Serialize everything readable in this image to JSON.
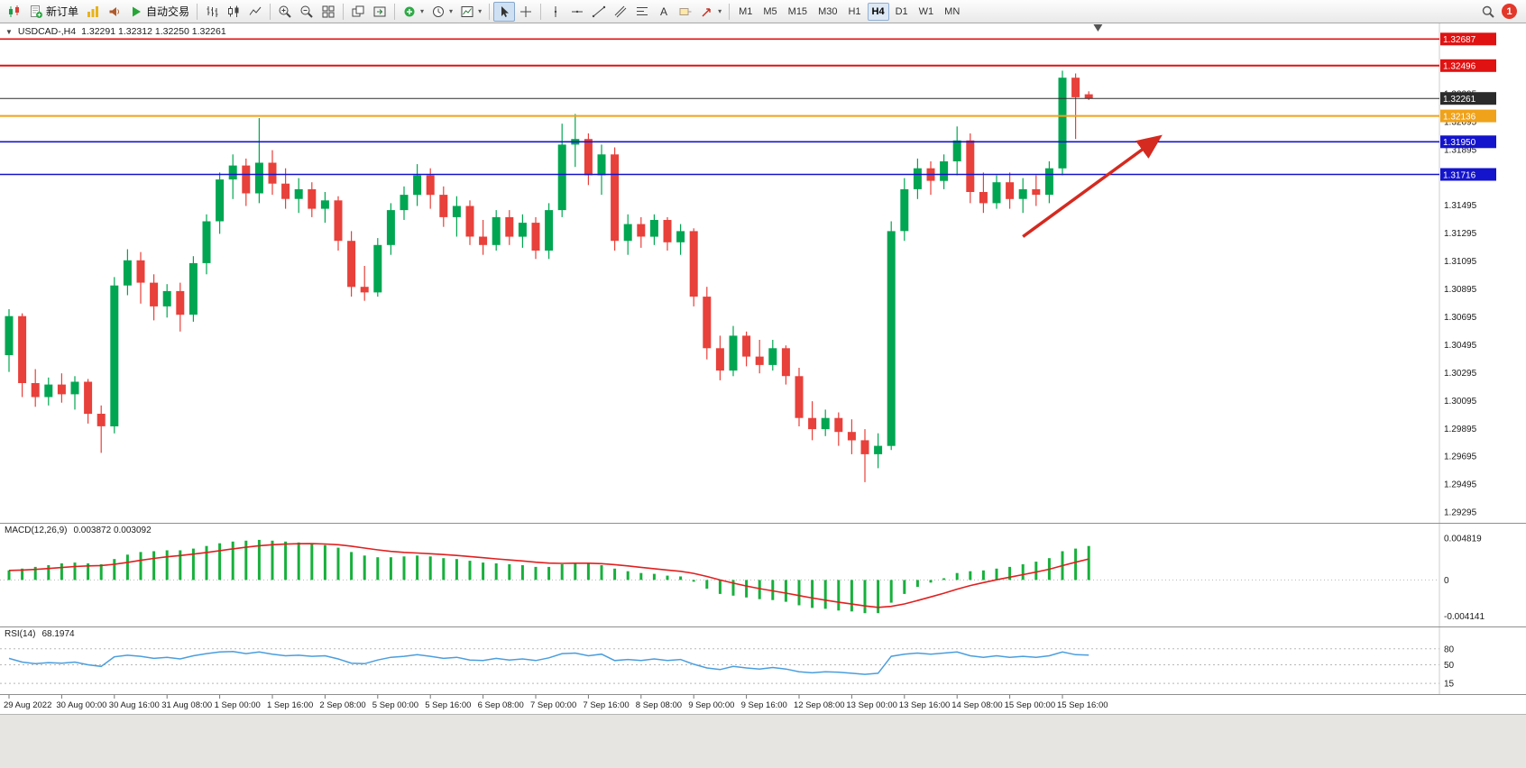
{
  "toolbar": {
    "groups": [
      {
        "items": [
          {
            "name": "chart-window",
            "icon": "candle-mini"
          },
          {
            "name": "new-order",
            "icon": "order-sheet",
            "label": "新订单"
          },
          {
            "name": "chart-gallery",
            "icon": "gallery"
          },
          {
            "name": "market-watch",
            "icon": "speaker"
          },
          {
            "name": "autotrade",
            "icon": "play",
            "label": "自动交易"
          }
        ]
      },
      {
        "items": [
          {
            "name": "bar-chart-mode",
            "icon": "bars"
          },
          {
            "name": "candlestick-mode",
            "icon": "candles"
          },
          {
            "name": "line-chart-mode",
            "icon": "polyline"
          }
        ]
      },
      {
        "items": [
          {
            "name": "zoom-in",
            "icon": "zoom-in"
          },
          {
            "name": "zoom-out",
            "icon": "zoom-out"
          },
          {
            "name": "tile-windows",
            "icon": "grid"
          }
        ]
      },
      {
        "items": [
          {
            "name": "arrange-charts",
            "icon": "cascade"
          },
          {
            "name": "chart-shift",
            "icon": "shift"
          }
        ]
      },
      {
        "items": [
          {
            "name": "indicators",
            "icon": "ind-plus",
            "caret": true
          },
          {
            "name": "periods",
            "icon": "clock",
            "caret": true
          },
          {
            "name": "templates",
            "icon": "template",
            "caret": true
          }
        ]
      },
      {
        "items": [
          {
            "name": "cursor",
            "icon": "cursor",
            "active": true
          },
          {
            "name": "crosshair",
            "icon": "crosshair"
          }
        ]
      },
      {
        "items": [
          {
            "name": "vertical-line",
            "icon": "vline"
          },
          {
            "name": "horizontal-line",
            "icon": "hline"
          },
          {
            "name": "trendline",
            "icon": "tline"
          },
          {
            "name": "equidistant-channel",
            "icon": "channel"
          },
          {
            "name": "fibonacci",
            "icon": "fibo"
          },
          {
            "name": "text",
            "icon": "textA"
          },
          {
            "name": "text-label",
            "icon": "label"
          },
          {
            "name": "arrows",
            "icon": "arrowtool",
            "caret": true
          }
        ]
      }
    ],
    "timeframes": [
      "M1",
      "M5",
      "M15",
      "M30",
      "H1",
      "H4",
      "D1",
      "W1",
      "MN"
    ],
    "active_timeframe": "H4",
    "notification_count": "1"
  },
  "chart_data": {
    "type": "candlestick",
    "title": "USDCAD-,H4",
    "ohlc_text": "1.32291 1.32312 1.32250 1.32261",
    "colors": {
      "up": "#00a651",
      "down": "#e8403a",
      "macd_hist": "#17b03c",
      "macd_signal": "#e02020",
      "rsi_line": "#4a9ede"
    },
    "price_axis": {
      "ticks": [
        "1.32295",
        "1.32095",
        "1.31895",
        "1.31695",
        "1.31495",
        "1.31295",
        "1.31095",
        "1.30895",
        "1.30695",
        "1.30495",
        "1.30295",
        "1.30095",
        "1.29895",
        "1.29695",
        "1.29495",
        "1.29295"
      ]
    },
    "hlines": [
      {
        "name": "resistance-line-top",
        "price": 1.32687,
        "color": "#e01212",
        "width": 1.6,
        "badge": "1.32687"
      },
      {
        "name": "resistance-line",
        "price": 1.32496,
        "color": "#e01212",
        "width": 2,
        "badge": "1.32496"
      },
      {
        "name": "current-price-line",
        "price": 1.32261,
        "color": "#2b2b2b",
        "width": 1,
        "badge": "1.32261"
      },
      {
        "name": "orange-level-line",
        "price": 1.32136,
        "color": "#efa21a",
        "width": 2,
        "badge": "1.32136"
      },
      {
        "name": "support-line-upper",
        "price": 1.3195,
        "color": "#1414cc",
        "width": 1.6,
        "badge": "1.31950"
      },
      {
        "name": "support-line-lower",
        "price": 1.31716,
        "color": "#1414cc",
        "width": 1.6,
        "badge": "1.31716"
      }
    ],
    "candles": [
      [
        1.3042,
        1.3075,
        1.303,
        1.307
      ],
      [
        1.307,
        1.3072,
        1.3012,
        1.3022
      ],
      [
        1.3022,
        1.3032,
        1.3005,
        1.3012
      ],
      [
        1.3012,
        1.3026,
        1.3006,
        1.3021
      ],
      [
        1.3021,
        1.3029,
        1.3008,
        1.3014
      ],
      [
        1.3014,
        1.3027,
        1.3003,
        1.3023
      ],
      [
        1.3023,
        1.3025,
        1.2993,
        1.3
      ],
      [
        1.3,
        1.3006,
        1.2972,
        1.2991
      ],
      [
        1.2991,
        1.3098,
        1.2986,
        1.3092
      ],
      [
        1.3092,
        1.3118,
        1.3085,
        1.311
      ],
      [
        1.311,
        1.3116,
        1.3079,
        1.3094
      ],
      [
        1.3094,
        1.31,
        1.3067,
        1.3077
      ],
      [
        1.3077,
        1.3093,
        1.3069,
        1.3088
      ],
      [
        1.3088,
        1.3094,
        1.3059,
        1.3071
      ],
      [
        1.3071,
        1.3113,
        1.3066,
        1.3108
      ],
      [
        1.3108,
        1.3143,
        1.31,
        1.3138
      ],
      [
        1.3138,
        1.3173,
        1.3129,
        1.3168
      ],
      [
        1.3168,
        1.3186,
        1.3154,
        1.3178
      ],
      [
        1.3178,
        1.3183,
        1.3149,
        1.3158
      ],
      [
        1.3158,
        1.3212,
        1.3151,
        1.318
      ],
      [
        1.318,
        1.3189,
        1.3157,
        1.3165
      ],
      [
        1.3165,
        1.3176,
        1.3147,
        1.3154
      ],
      [
        1.3154,
        1.3169,
        1.3144,
        1.3161
      ],
      [
        1.3161,
        1.3166,
        1.3141,
        1.3147
      ],
      [
        1.3147,
        1.3159,
        1.3137,
        1.3153
      ],
      [
        1.3153,
        1.3156,
        1.3117,
        1.3124
      ],
      [
        1.3124,
        1.3131,
        1.3084,
        1.3091
      ],
      [
        1.3091,
        1.3106,
        1.3081,
        1.3087
      ],
      [
        1.3087,
        1.3126,
        1.3084,
        1.3121
      ],
      [
        1.3121,
        1.3151,
        1.3114,
        1.3146
      ],
      [
        1.3146,
        1.3163,
        1.3139,
        1.3157
      ],
      [
        1.3157,
        1.3179,
        1.3149,
        1.3171
      ],
      [
        1.3171,
        1.3176,
        1.3147,
        1.3157
      ],
      [
        1.3157,
        1.3163,
        1.3134,
        1.3141
      ],
      [
        1.3141,
        1.3156,
        1.3127,
        1.3149
      ],
      [
        1.3149,
        1.3153,
        1.3121,
        1.3127
      ],
      [
        1.3127,
        1.3139,
        1.3114,
        1.3121
      ],
      [
        1.3121,
        1.3146,
        1.3117,
        1.3141
      ],
      [
        1.3141,
        1.3146,
        1.3121,
        1.3127
      ],
      [
        1.3127,
        1.3143,
        1.3119,
        1.3137
      ],
      [
        1.3137,
        1.3141,
        1.3111,
        1.3117
      ],
      [
        1.3117,
        1.3151,
        1.3111,
        1.3146
      ],
      [
        1.3146,
        1.3208,
        1.3141,
        1.3193
      ],
      [
        1.3193,
        1.3215,
        1.3177,
        1.3197
      ],
      [
        1.3197,
        1.3201,
        1.3164,
        1.3171
      ],
      [
        1.3171,
        1.3193,
        1.3157,
        1.3186
      ],
      [
        1.3186,
        1.3191,
        1.3117,
        1.3124
      ],
      [
        1.3124,
        1.3143,
        1.3114,
        1.3136
      ],
      [
        1.3136,
        1.3141,
        1.3119,
        1.3127
      ],
      [
        1.3127,
        1.3143,
        1.3121,
        1.3139
      ],
      [
        1.3139,
        1.3141,
        1.3117,
        1.3123
      ],
      [
        1.3123,
        1.3136,
        1.3114,
        1.3131
      ],
      [
        1.3131,
        1.3133,
        1.3077,
        1.3084
      ],
      [
        1.3084,
        1.3091,
        1.3039,
        1.3047
      ],
      [
        1.3047,
        1.3056,
        1.3024,
        1.3031
      ],
      [
        1.3031,
        1.3063,
        1.3027,
        1.3056
      ],
      [
        1.3056,
        1.3059,
        1.3034,
        1.3041
      ],
      [
        1.3041,
        1.3053,
        1.3029,
        1.3035
      ],
      [
        1.3035,
        1.3053,
        1.3031,
        1.3047
      ],
      [
        1.3047,
        1.3049,
        1.3021,
        1.3027
      ],
      [
        1.3027,
        1.3033,
        1.2991,
        1.2997
      ],
      [
        1.2997,
        1.3009,
        1.2981,
        1.2989
      ],
      [
        1.2989,
        1.3003,
        1.2984,
        1.2997
      ],
      [
        1.2997,
        1.3001,
        1.2977,
        1.2987
      ],
      [
        1.2987,
        1.2996,
        1.2971,
        1.2981
      ],
      [
        1.2981,
        1.2989,
        1.2951,
        1.2971
      ],
      [
        1.2971,
        1.2986,
        1.2961,
        1.2977
      ],
      [
        1.2977,
        1.3138,
        1.2974,
        1.3131
      ],
      [
        1.3131,
        1.3169,
        1.3124,
        1.3161
      ],
      [
        1.3161,
        1.3183,
        1.3154,
        1.3176
      ],
      [
        1.3176,
        1.3181,
        1.3157,
        1.3167
      ],
      [
        1.3167,
        1.3186,
        1.3161,
        1.3181
      ],
      [
        1.3181,
        1.3206,
        1.3171,
        1.3196
      ],
      [
        1.3196,
        1.3201,
        1.3151,
        1.3159
      ],
      [
        1.3159,
        1.3173,
        1.3144,
        1.3151
      ],
      [
        1.3151,
        1.3171,
        1.3147,
        1.3166
      ],
      [
        1.3166,
        1.3173,
        1.3147,
        1.3154
      ],
      [
        1.3154,
        1.3169,
        1.3144,
        1.3161
      ],
      [
        1.3161,
        1.3171,
        1.3149,
        1.3157
      ],
      [
        1.3157,
        1.3181,
        1.3151,
        1.3176
      ],
      [
        1.3176,
        1.3246,
        1.3171,
        1.3241
      ],
      [
        1.3241,
        1.3244,
        1.3197,
        1.3227
      ],
      [
        1.32291,
        1.32312,
        1.3225,
        1.32261
      ]
    ],
    "time_labels": [
      "29 Aug 2022",
      "30 Aug 00:00",
      "30 Aug 16:00",
      "31 Aug 08:00",
      "1 Sep 00:00",
      "1 Sep 16:00",
      "2 Sep 08:00",
      "5 Sep 00:00",
      "5 Sep 16:00",
      "6 Sep 08:00",
      "7 Sep 00:00",
      "7 Sep 16:00",
      "8 Sep 08:00",
      "9 Sep 00:00",
      "9 Sep 16:00",
      "12 Sep 08:00",
      "13 Sep 00:00",
      "13 Sep 16:00",
      "14 Sep 08:00",
      "15 Sep 00:00",
      "15 Sep 16:00"
    ],
    "label_step": 4,
    "shift_marker_index": 82.7,
    "arrow": {
      "from_index": 77,
      "from_price": 1.3127,
      "to_index": 87.3,
      "to_price": 1.3198,
      "color": "#d42a20"
    },
    "macd": {
      "label": "MACD(12,26,9)",
      "values": "0.003872 0.003092",
      "axis": [
        {
          "v": 0.004819,
          "label": "0.004819"
        },
        {
          "v": 0,
          "label": "0"
        },
        {
          "v": -0.004141,
          "label": "-0.004141"
        }
      ],
      "range": [
        -0.0045,
        0.005
      ],
      "hist": [
        0.0011,
        0.0013,
        0.0015,
        0.0017,
        0.0019,
        0.002,
        0.0019,
        0.0018,
        0.0024,
        0.0029,
        0.0032,
        0.0033,
        0.0034,
        0.0034,
        0.0036,
        0.0039,
        0.0042,
        0.0044,
        0.0045,
        0.0046,
        0.0045,
        0.0044,
        0.0043,
        0.0042,
        0.004,
        0.0037,
        0.0032,
        0.0028,
        0.0026,
        0.0026,
        0.0027,
        0.0028,
        0.0027,
        0.0025,
        0.0024,
        0.0022,
        0.002,
        0.0019,
        0.0018,
        0.0017,
        0.0015,
        0.0015,
        0.0018,
        0.002,
        0.0019,
        0.0017,
        0.0013,
        0.001,
        0.0008,
        0.0007,
        0.0005,
        0.0004,
        -0.0002,
        -0.001,
        -0.0016,
        -0.0018,
        -0.002,
        -0.0022,
        -0.0023,
        -0.0025,
        -0.0029,
        -0.0032,
        -0.0033,
        -0.0035,
        -0.0036,
        -0.0038,
        -0.0038,
        -0.0026,
        -0.0016,
        -0.0008,
        -0.0003,
        0.0002,
        0.0008,
        0.001,
        0.0011,
        0.0013,
        0.0015,
        0.0018,
        0.0021,
        0.0025,
        0.0033,
        0.0036,
        0.0039
      ]
    },
    "rsi": {
      "label": "RSI(14)",
      "value": "68.1974",
      "levels": [
        {
          "v": 80,
          "label": "80"
        },
        {
          "v": 50,
          "label": "50"
        },
        {
          "v": 15,
          "label": "15"
        }
      ],
      "range": [
        0,
        100
      ],
      "values": [
        62,
        55,
        52,
        54,
        53,
        55,
        50,
        47,
        65,
        68,
        66,
        62,
        64,
        61,
        67,
        71,
        74,
        75,
        71,
        74,
        70,
        67,
        68,
        66,
        67,
        61,
        53,
        52,
        59,
        64,
        66,
        69,
        66,
        62,
        64,
        59,
        58,
        62,
        59,
        61,
        58,
        63,
        71,
        72,
        67,
        70,
        58,
        60,
        58,
        61,
        58,
        60,
        51,
        44,
        41,
        47,
        44,
        42,
        45,
        42,
        37,
        35,
        37,
        36,
        34,
        32,
        34,
        66,
        70,
        72,
        70,
        72,
        74,
        67,
        64,
        67,
        64,
        66,
        64,
        67,
        74,
        69,
        68.2
      ]
    }
  }
}
